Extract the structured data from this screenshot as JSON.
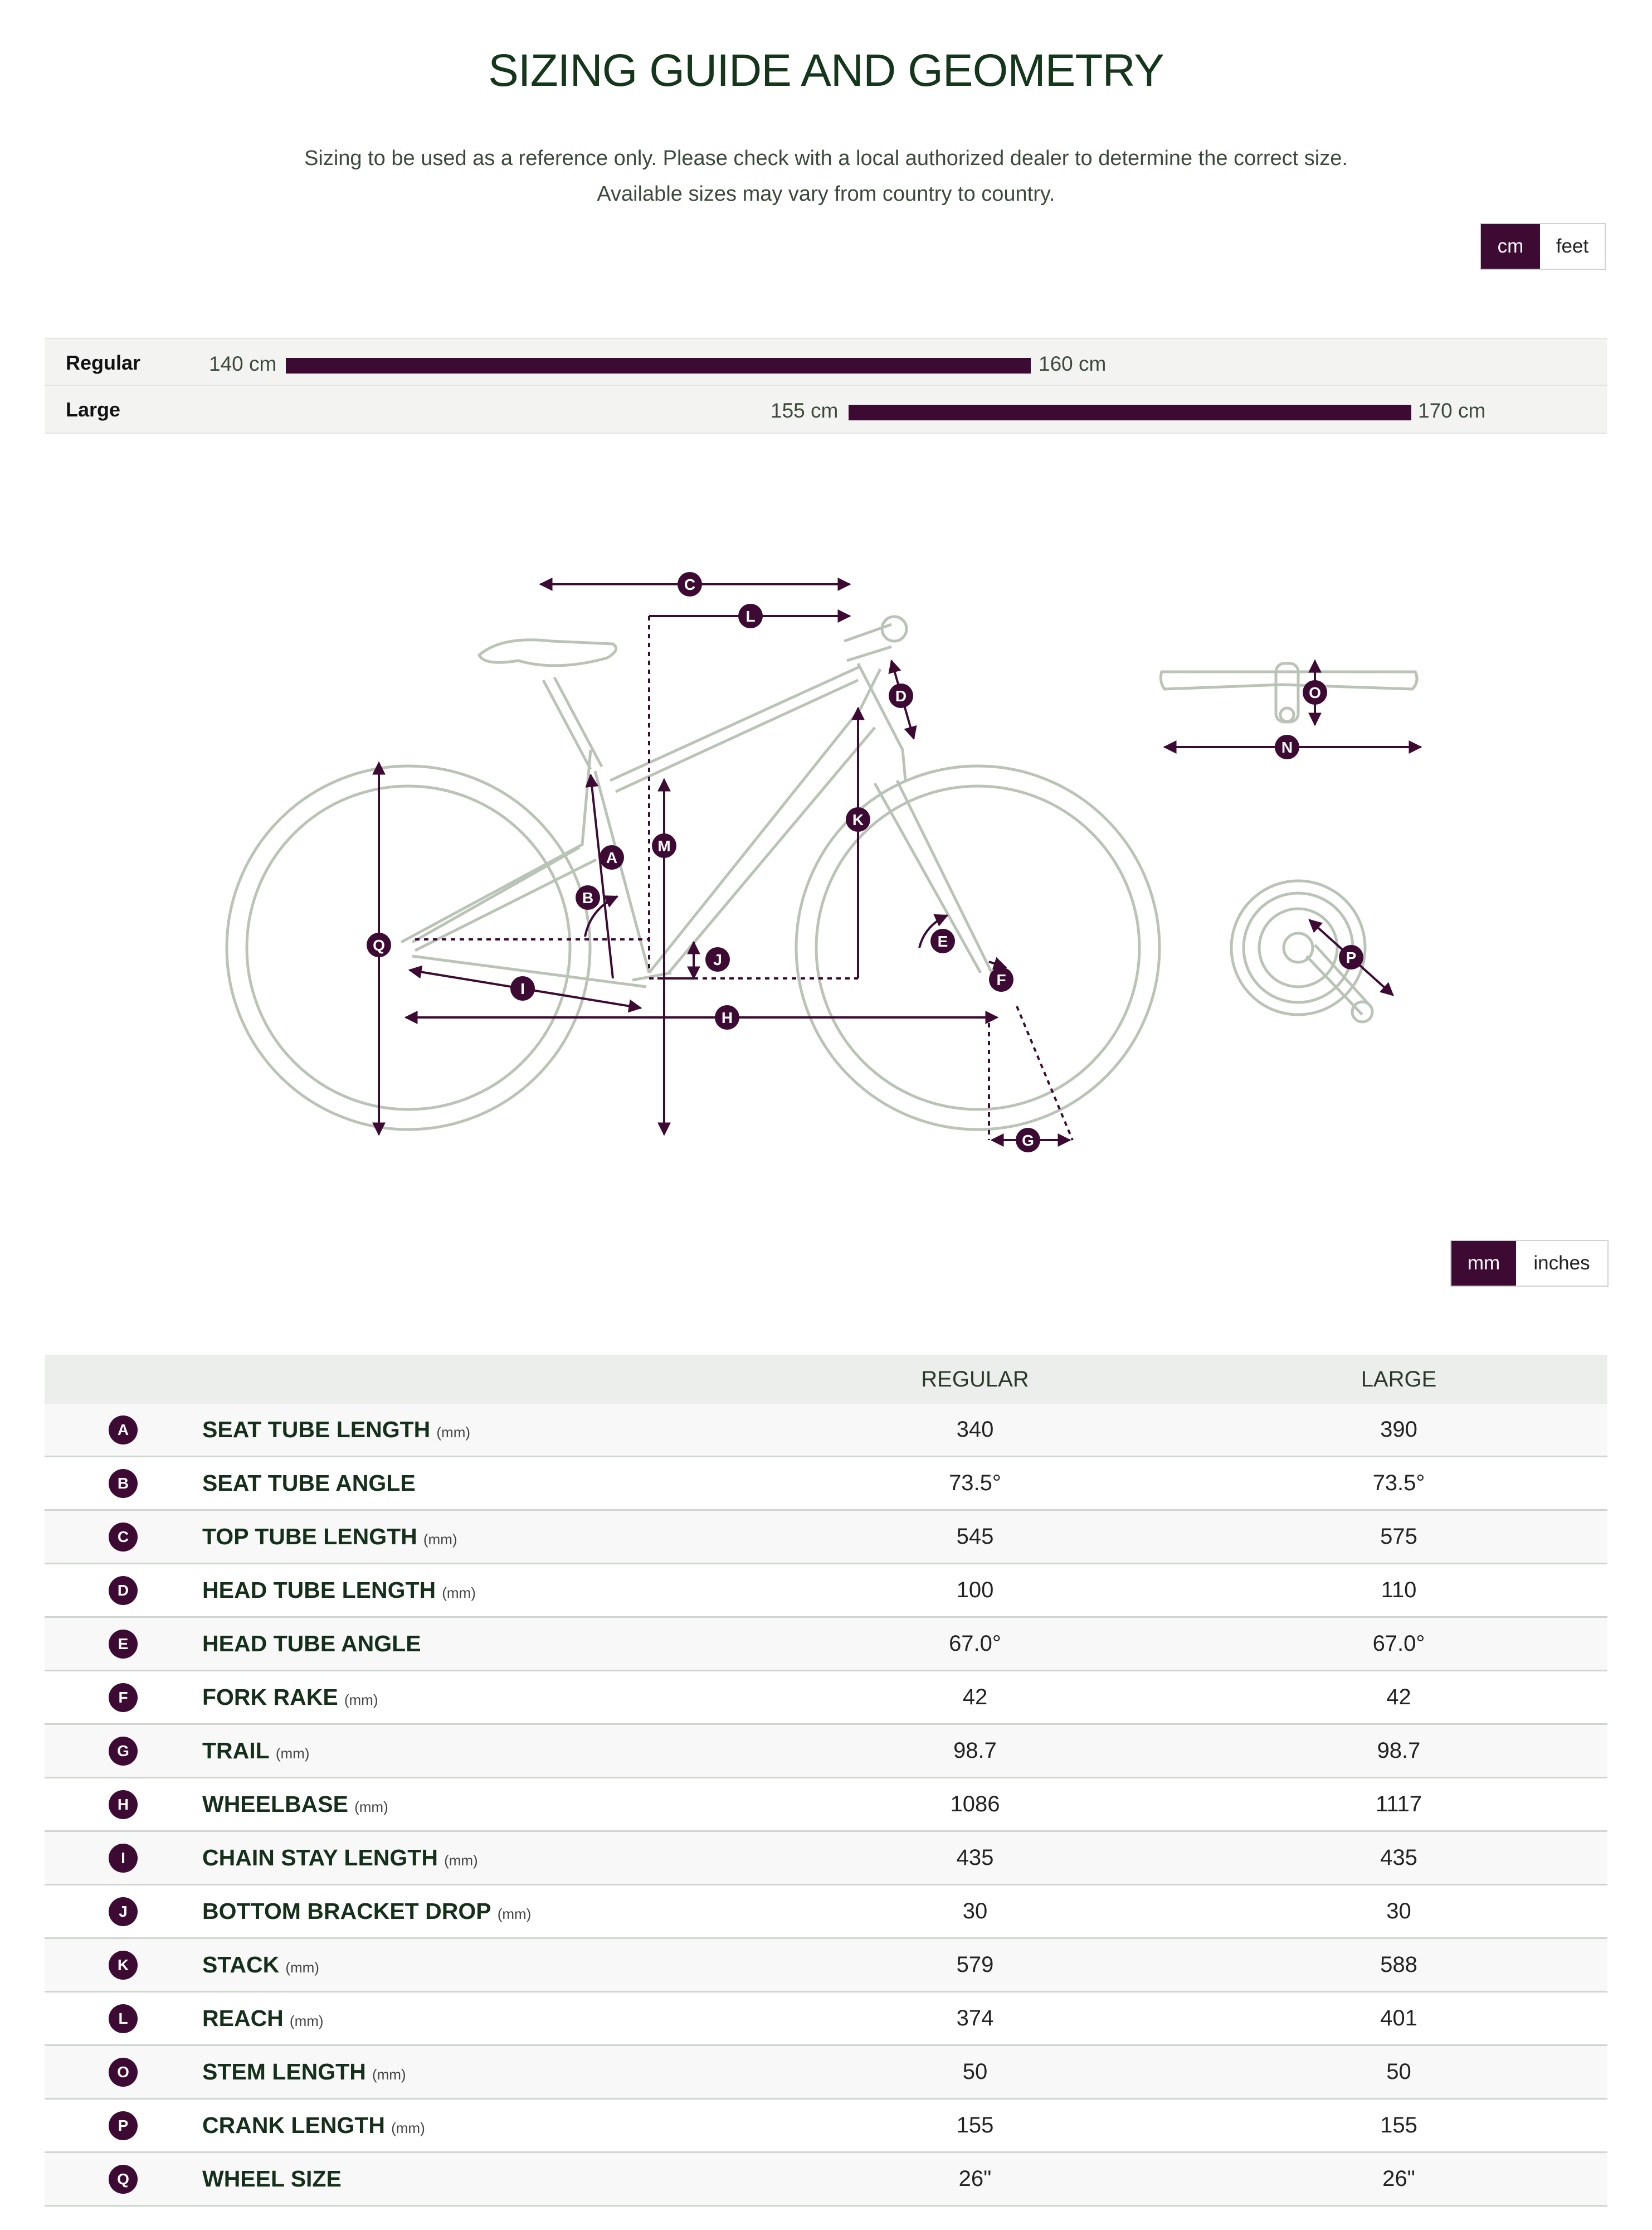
{
  "title": "SIZING GUIDE AND GEOMETRY",
  "intro": {
    "line1": "Sizing to be used as a reference only. Please check with a local authorized dealer to determine the correct size.",
    "line2": "Available sizes may vary from country to country."
  },
  "height_unit_toggle": {
    "active": "cm",
    "inactive": "feet"
  },
  "size_ranges": [
    {
      "name": "Regular",
      "min": "140 cm",
      "max": "160 cm"
    },
    {
      "name": "Large",
      "min": "155 cm",
      "max": "170 cm"
    }
  ],
  "diagram_letters": [
    "A",
    "B",
    "C",
    "D",
    "E",
    "F",
    "G",
    "H",
    "I",
    "J",
    "K",
    "L",
    "M",
    "N",
    "O",
    "P",
    "Q"
  ],
  "length_unit_toggle": {
    "active": "mm",
    "inactive": "inches"
  },
  "table": {
    "columns": [
      "REGULAR",
      "LARGE"
    ],
    "rows": [
      {
        "letter": "A",
        "label": "SEAT TUBE LENGTH",
        "unit": "(mm)",
        "regular": "340",
        "large": "390"
      },
      {
        "letter": "B",
        "label": "SEAT TUBE ANGLE",
        "unit": "",
        "regular": "73.5°",
        "large": "73.5°"
      },
      {
        "letter": "C",
        "label": "TOP TUBE LENGTH",
        "unit": "(mm)",
        "regular": "545",
        "large": "575"
      },
      {
        "letter": "D",
        "label": "HEAD TUBE LENGTH",
        "unit": "(mm)",
        "regular": "100",
        "large": "110"
      },
      {
        "letter": "E",
        "label": "HEAD TUBE ANGLE",
        "unit": "",
        "regular": "67.0°",
        "large": "67.0°"
      },
      {
        "letter": "F",
        "label": "FORK RAKE",
        "unit": "(mm)",
        "regular": "42",
        "large": "42"
      },
      {
        "letter": "G",
        "label": "TRAIL",
        "unit": "(mm)",
        "regular": "98.7",
        "large": "98.7"
      },
      {
        "letter": "H",
        "label": "WHEELBASE",
        "unit": "(mm)",
        "regular": "1086",
        "large": "1117"
      },
      {
        "letter": "I",
        "label": "CHAIN STAY LENGTH",
        "unit": "(mm)",
        "regular": "435",
        "large": "435"
      },
      {
        "letter": "J",
        "label": "BOTTOM BRACKET DROP",
        "unit": "(mm)",
        "regular": "30",
        "large": "30"
      },
      {
        "letter": "K",
        "label": "STACK",
        "unit": "(mm)",
        "regular": "579",
        "large": "588"
      },
      {
        "letter": "L",
        "label": "REACH",
        "unit": "(mm)",
        "regular": "374",
        "large": "401"
      },
      {
        "letter": "O",
        "label": "STEM LENGTH",
        "unit": "(mm)",
        "regular": "50",
        "large": "50"
      },
      {
        "letter": "P",
        "label": "CRANK LENGTH",
        "unit": "(mm)",
        "regular": "155",
        "large": "155"
      },
      {
        "letter": "Q",
        "label": "WHEEL SIZE",
        "unit": "",
        "regular": "26\"",
        "large": "26\""
      }
    ]
  },
  "colors": {
    "accent": "#3d0a33",
    "frame": "#b9c3b6",
    "title": "#14361a"
  },
  "icons": {
    "diagram": "bike-geometry-diagram",
    "handlebar": "handlebar-icon",
    "crankset": "crankset-icon"
  }
}
